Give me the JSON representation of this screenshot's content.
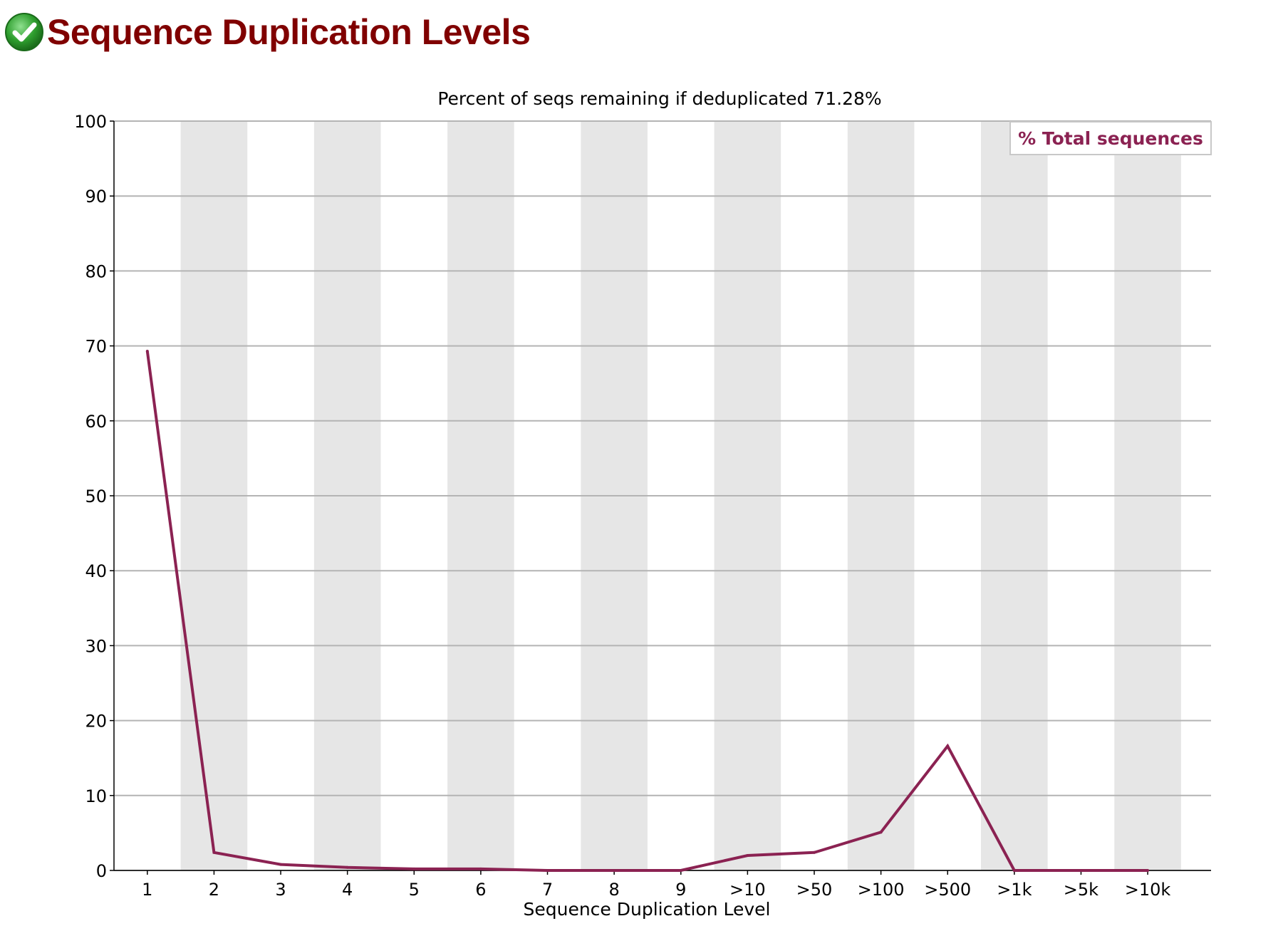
{
  "header": {
    "status_icon": "check-circle-icon",
    "status_color": "#2e9e2e",
    "title": "Sequence Duplication Levels"
  },
  "chart_data": {
    "type": "line",
    "title": "Percent of seqs remaining if deduplicated 71.28%",
    "xlabel": "Sequence Duplication Level",
    "ylabel": "",
    "categories": [
      "1",
      "2",
      "3",
      "4",
      "5",
      "6",
      "7",
      "8",
      "9",
      ">10",
      ">50",
      ">100",
      ">500",
      ">1k",
      ">5k",
      ">10k"
    ],
    "ylim": [
      0,
      100
    ],
    "yticks": [
      0,
      10,
      20,
      30,
      40,
      50,
      60,
      70,
      80,
      90,
      100
    ],
    "series": [
      {
        "name": "% Total sequences",
        "color": "#8b2252",
        "values": [
          69.3,
          2.4,
          0.8,
          0.4,
          0.2,
          0.2,
          0.0,
          0.0,
          0.0,
          2.0,
          2.4,
          5.1,
          16.6,
          0.0,
          0.0,
          0.0
        ]
      }
    ],
    "grid": true,
    "alternating_column_shading": true,
    "shade_color": "#e6e6e6",
    "legend_position": "top-right"
  }
}
